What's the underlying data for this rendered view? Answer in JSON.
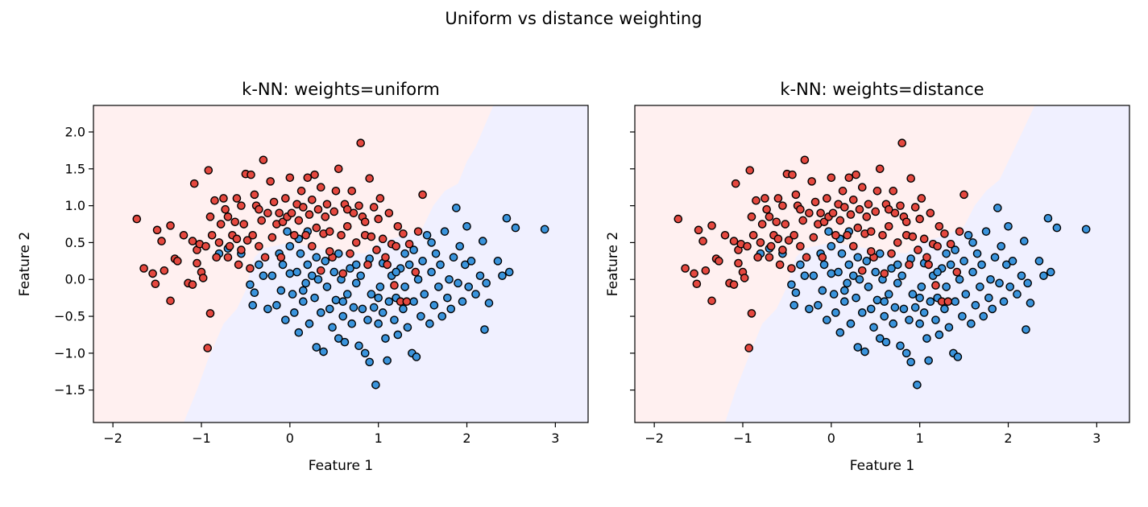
{
  "suptitle": "Uniform vs distance weighting",
  "colors": {
    "class_0": "#e5483f",
    "class_1": "#3a94dc",
    "region_0": "#fff0f0",
    "region_1": "#f0f0ff",
    "edge": "#000000"
  },
  "chart_data": [
    {
      "type": "scatter",
      "title": "k-NN: weights=uniform",
      "xlabel": "Feature 1",
      "ylabel": "Feature 2",
      "xlim": [
        -2.22,
        3.37
      ],
      "ylim": [
        -1.94,
        2.36
      ],
      "xticks": [
        -2,
        -1,
        0,
        1,
        2,
        3
      ],
      "xtick_labels": [
        "−2",
        "−1",
        "0",
        "1",
        "2",
        "3"
      ],
      "yticks": [
        -1.5,
        -1.0,
        -0.5,
        0.0,
        0.5,
        1.0,
        1.5,
        2.0
      ],
      "ytick_labels": [
        "−1.5",
        "−1.0",
        "−0.5",
        "0.0",
        "0.5",
        "1.0",
        "1.5",
        "2.0"
      ],
      "show_ytick_labels": true,
      "grid": false,
      "decision_boundary": [
        [
          -1.2,
          -1.94
        ],
        [
          -1.05,
          -1.5
        ],
        [
          -0.93,
          -1.1
        ],
        [
          -0.75,
          -0.6
        ],
        [
          -0.6,
          -0.4
        ],
        [
          -0.5,
          -0.15
        ],
        [
          -0.45,
          0.1
        ],
        [
          -0.4,
          0.3
        ],
        [
          -0.3,
          0.42
        ],
        [
          0.0,
          0.5
        ],
        [
          0.4,
          0.4
        ],
        [
          0.85,
          0.35
        ],
        [
          1.0,
          0.5
        ],
        [
          1.3,
          0.6
        ],
        [
          1.5,
          0.7
        ],
        [
          1.62,
          1.0
        ],
        [
          1.75,
          1.2
        ],
        [
          1.9,
          1.3
        ],
        [
          2.0,
          1.6
        ],
        [
          2.1,
          1.8
        ],
        [
          2.3,
          2.36
        ]
      ]
    },
    {
      "type": "scatter",
      "title": "k-NN: weights=distance",
      "xlabel": "Feature 1",
      "ylabel": "Feature 2",
      "xlim": [
        -2.22,
        3.37
      ],
      "ylim": [
        -1.94,
        2.36
      ],
      "xticks": [
        -2,
        -1,
        0,
        1,
        2,
        3
      ],
      "xtick_labels": [
        "−2",
        "−1",
        "0",
        "1",
        "2",
        "3"
      ],
      "yticks": [
        -1.5,
        -1.0,
        -0.5,
        0.0,
        0.5,
        1.0,
        1.5,
        2.0
      ],
      "show_ytick_labels": false,
      "grid": false,
      "decision_boundary": [
        [
          -1.2,
          -1.94
        ],
        [
          -1.08,
          -1.5
        ],
        [
          -0.95,
          -1.1
        ],
        [
          -0.78,
          -0.6
        ],
        [
          -0.62,
          -0.4
        ],
        [
          -0.52,
          -0.15
        ],
        [
          -0.45,
          0.1
        ],
        [
          -0.4,
          0.3
        ],
        [
          -0.3,
          0.42
        ],
        [
          0.0,
          0.5
        ],
        [
          0.4,
          0.42
        ],
        [
          0.85,
          0.35
        ],
        [
          1.0,
          0.5
        ],
        [
          1.3,
          0.6
        ],
        [
          1.5,
          0.72
        ],
        [
          1.62,
          1.0
        ],
        [
          1.75,
          1.2
        ],
        [
          1.9,
          1.35
        ],
        [
          2.0,
          1.6
        ],
        [
          2.1,
          1.85
        ],
        [
          2.3,
          2.36
        ]
      ]
    }
  ],
  "points": {
    "class_0": [
      [
        -1.73,
        0.82
      ],
      [
        -1.65,
        0.15
      ],
      [
        -1.55,
        0.08
      ],
      [
        -1.52,
        -0.06
      ],
      [
        -1.5,
        0.67
      ],
      [
        -1.45,
        0.52
      ],
      [
        -1.42,
        0.12
      ],
      [
        -1.35,
        0.73
      ],
      [
        -1.35,
        -0.29
      ],
      [
        -1.3,
        0.28
      ],
      [
        -1.27,
        0.25
      ],
      [
        -1.2,
        0.6
      ],
      [
        -1.15,
        -0.05
      ],
      [
        -1.1,
        0.52
      ],
      [
        -1.1,
        -0.07
      ],
      [
        -1.08,
        1.3
      ],
      [
        -1.05,
        0.4
      ],
      [
        -1.05,
        0.22
      ],
      [
        -1.02,
        0.48
      ],
      [
        -1.0,
        0.1
      ],
      [
        -0.98,
        0.02
      ],
      [
        -0.95,
        0.45
      ],
      [
        -0.93,
        -0.93
      ],
      [
        -0.92,
        1.48
      ],
      [
        -0.9,
        -0.46
      ],
      [
        -0.9,
        0.85
      ],
      [
        -0.88,
        0.6
      ],
      [
        -0.85,
        1.07
      ],
      [
        -0.83,
        0.3
      ],
      [
        -0.8,
        0.5
      ],
      [
        -0.78,
        0.75
      ],
      [
        -0.75,
        1.1
      ],
      [
        -0.73,
        0.95
      ],
      [
        -0.7,
        0.3
      ],
      [
        -0.68,
        0.45
      ],
      [
        -0.65,
        0.6
      ],
      [
        -0.62,
        0.78
      ],
      [
        -0.6,
        1.1
      ],
      [
        -0.58,
        0.2
      ],
      [
        -0.55,
        1.0
      ],
      [
        -0.55,
        0.4
      ],
      [
        -0.52,
        0.75
      ],
      [
        -0.5,
        1.43
      ],
      [
        -0.48,
        0.53
      ],
      [
        -0.45,
        0.15
      ],
      [
        -0.44,
        1.42
      ],
      [
        -0.42,
        0.6
      ],
      [
        -0.4,
        1.15
      ],
      [
        -0.38,
        1.0
      ],
      [
        -0.35,
        0.45
      ],
      [
        -0.32,
        0.8
      ],
      [
        -0.3,
        1.62
      ],
      [
        -0.28,
        0.3
      ],
      [
        -0.25,
        0.9
      ],
      [
        -0.22,
        1.33
      ],
      [
        -0.2,
        0.57
      ],
      [
        -0.18,
        1.05
      ],
      [
        -0.15,
        0.75
      ],
      [
        -0.12,
        0.9
      ],
      [
        -0.1,
        0.3
      ],
      [
        -0.08,
        0.78
      ],
      [
        -0.05,
        1.1
      ],
      [
        -0.03,
        0.85
      ],
      [
        0.0,
        1.38
      ],
      [
        0.02,
        0.9
      ],
      [
        0.05,
        0.6
      ],
      [
        0.08,
        1.02
      ],
      [
        0.1,
        0.8
      ],
      [
        0.13,
        1.2
      ],
      [
        0.15,
        0.98
      ],
      [
        0.18,
        0.6
      ],
      [
        0.2,
        1.38
      ],
      [
        0.22,
        0.88
      ],
      [
        0.25,
        1.08
      ],
      [
        0.28,
        1.42
      ],
      [
        0.3,
        0.7
      ],
      [
        0.32,
        0.95
      ],
      [
        0.35,
        1.25
      ],
      [
        0.38,
        0.62
      ],
      [
        0.4,
        0.85
      ],
      [
        0.42,
        1.02
      ],
      [
        0.45,
        0.65
      ],
      [
        0.48,
        0.3
      ],
      [
        0.5,
        0.92
      ],
      [
        0.52,
        1.2
      ],
      [
        0.55,
        1.5
      ],
      [
        0.58,
        0.6
      ],
      [
        0.6,
        0.08
      ],
      [
        0.62,
        1.02
      ],
      [
        0.65,
        0.72
      ],
      [
        0.68,
        0.35
      ],
      [
        0.7,
        1.2
      ],
      [
        0.72,
        0.9
      ],
      [
        0.75,
        0.5
      ],
      [
        0.78,
        1.0
      ],
      [
        0.8,
        1.85
      ],
      [
        0.82,
        0.85
      ],
      [
        0.85,
        0.6
      ],
      [
        0.88,
        0.2
      ],
      [
        0.9,
        1.37
      ],
      [
        0.92,
        0.58
      ],
      [
        0.95,
        0.98
      ],
      [
        0.98,
        0.4
      ],
      [
        1.0,
        0.82
      ],
      [
        1.02,
        1.1
      ],
      [
        1.05,
        0.55
      ],
      [
        1.08,
        0.3
      ],
      [
        1.1,
        0.2
      ],
      [
        1.12,
        0.9
      ],
      [
        1.15,
        0.48
      ],
      [
        1.18,
        -0.08
      ],
      [
        1.2,
        0.45
      ],
      [
        1.22,
        0.72
      ],
      [
        1.25,
        -0.3
      ],
      [
        1.28,
        0.62
      ],
      [
        1.32,
        -0.3
      ],
      [
        1.35,
        0.48
      ],
      [
        1.42,
        0.1
      ],
      [
        1.45,
        0.65
      ],
      [
        1.5,
        1.15
      ],
      [
        -0.6,
        0.55
      ],
      [
        -0.7,
        0.85
      ],
      [
        -0.35,
        0.95
      ],
      [
        0.25,
        0.45
      ],
      [
        0.35,
        0.12
      ],
      [
        0.65,
        0.95
      ],
      [
        0.85,
        0.78
      ],
      [
        0.45,
        0.38
      ]
    ],
    "class_1": [
      [
        -0.8,
        0.35
      ],
      [
        -0.7,
        0.42
      ],
      [
        -0.55,
        0.35
      ],
      [
        -0.45,
        -0.07
      ],
      [
        -0.42,
        -0.35
      ],
      [
        -0.4,
        -0.18
      ],
      [
        -0.35,
        0.2
      ],
      [
        -0.3,
        0.05
      ],
      [
        -0.25,
        -0.4
      ],
      [
        -0.2,
        0.05
      ],
      [
        -0.15,
        -0.35
      ],
      [
        -0.12,
        0.35
      ],
      [
        -0.1,
        -0.15
      ],
      [
        -0.08,
        0.2
      ],
      [
        -0.05,
        -0.55
      ],
      [
        -0.03,
        0.65
      ],
      [
        0.0,
        0.08
      ],
      [
        0.03,
        -0.2
      ],
      [
        0.05,
        -0.45
      ],
      [
        0.08,
        0.1
      ],
      [
        0.1,
        -0.72
      ],
      [
        0.12,
        0.35
      ],
      [
        0.15,
        -0.3
      ],
      [
        0.18,
        -0.05
      ],
      [
        0.2,
        0.2
      ],
      [
        0.22,
        -0.6
      ],
      [
        0.25,
        0.05
      ],
      [
        0.28,
        -0.25
      ],
      [
        0.3,
        -0.92
      ],
      [
        0.32,
        0.0
      ],
      [
        0.35,
        -0.45
      ],
      [
        0.38,
        -0.98
      ],
      [
        0.4,
        0.25
      ],
      [
        0.42,
        -0.1
      ],
      [
        0.45,
        -0.4
      ],
      [
        0.48,
        -0.65
      ],
      [
        0.5,
        0.1
      ],
      [
        0.52,
        -0.28
      ],
      [
        0.55,
        -0.8
      ],
      [
        0.58,
        0.0
      ],
      [
        0.6,
        -0.5
      ],
      [
        0.62,
        -0.85
      ],
      [
        0.65,
        -0.2
      ],
      [
        0.68,
        0.15
      ],
      [
        0.7,
        -0.6
      ],
      [
        0.72,
        -0.38
      ],
      [
        0.75,
        -0.05
      ],
      [
        0.78,
        -0.9
      ],
      [
        0.8,
        0.05
      ],
      [
        0.82,
        -0.4
      ],
      [
        0.85,
        -1.0
      ],
      [
        0.88,
        -0.55
      ],
      [
        0.9,
        -1.12
      ],
      [
        0.92,
        -0.2
      ],
      [
        0.95,
        -0.38
      ],
      [
        0.97,
        -1.43
      ],
      [
        1.0,
        -0.6
      ],
      [
        1.02,
        -0.1
      ],
      [
        1.05,
        -0.45
      ],
      [
        1.08,
        -0.8
      ],
      [
        1.1,
        -1.1
      ],
      [
        1.12,
        -0.3
      ],
      [
        1.15,
        0.05
      ],
      [
        1.18,
        -0.55
      ],
      [
        1.2,
        -0.25
      ],
      [
        1.22,
        -0.75
      ],
      [
        1.25,
        0.15
      ],
      [
        1.28,
        -0.4
      ],
      [
        1.3,
        -0.1
      ],
      [
        1.33,
        -0.65
      ],
      [
        1.35,
        0.2
      ],
      [
        1.38,
        -1.0
      ],
      [
        1.4,
        -0.3
      ],
      [
        1.43,
        -1.05
      ],
      [
        1.45,
        0.0
      ],
      [
        1.48,
        -0.5
      ],
      [
        1.5,
        0.25
      ],
      [
        1.52,
        -0.2
      ],
      [
        1.55,
        0.6
      ],
      [
        1.58,
        -0.6
      ],
      [
        1.6,
        0.1
      ],
      [
        1.63,
        -0.35
      ],
      [
        1.65,
        0.35
      ],
      [
        1.68,
        -0.1
      ],
      [
        1.7,
        0.2
      ],
      [
        1.72,
        -0.5
      ],
      [
        1.75,
        0.65
      ],
      [
        1.78,
        -0.25
      ],
      [
        1.8,
        0.0
      ],
      [
        1.82,
        -0.4
      ],
      [
        1.85,
        0.3
      ],
      [
        1.88,
        0.97
      ],
      [
        1.9,
        -0.05
      ],
      [
        1.92,
        0.45
      ],
      [
        1.95,
        -0.3
      ],
      [
        1.98,
        0.2
      ],
      [
        2.0,
        0.72
      ],
      [
        2.02,
        -0.1
      ],
      [
        2.05,
        0.25
      ],
      [
        2.1,
        -0.2
      ],
      [
        2.15,
        0.05
      ],
      [
        2.18,
        0.52
      ],
      [
        2.2,
        -0.68
      ],
      [
        2.22,
        -0.05
      ],
      [
        2.25,
        -0.32
      ],
      [
        2.35,
        0.25
      ],
      [
        2.4,
        0.05
      ],
      [
        2.45,
        0.83
      ],
      [
        2.48,
        0.1
      ],
      [
        2.55,
        0.7
      ],
      [
        2.88,
        0.68
      ],
      [
        0.0,
        0.45
      ],
      [
        0.1,
        0.55
      ],
      [
        0.2,
        0.65
      ],
      [
        0.3,
        0.3
      ],
      [
        0.55,
        0.35
      ],
      [
        0.75,
        0.2
      ],
      [
        0.9,
        0.28
      ],
      [
        1.05,
        0.22
      ],
      [
        1.2,
        0.1
      ],
      [
        1.4,
        0.4
      ],
      [
        1.6,
        0.5
      ],
      [
        1.3,
        0.35
      ],
      [
        0.15,
        -0.15
      ],
      [
        0.6,
        -0.3
      ],
      [
        1.0,
        -0.25
      ]
    ]
  }
}
